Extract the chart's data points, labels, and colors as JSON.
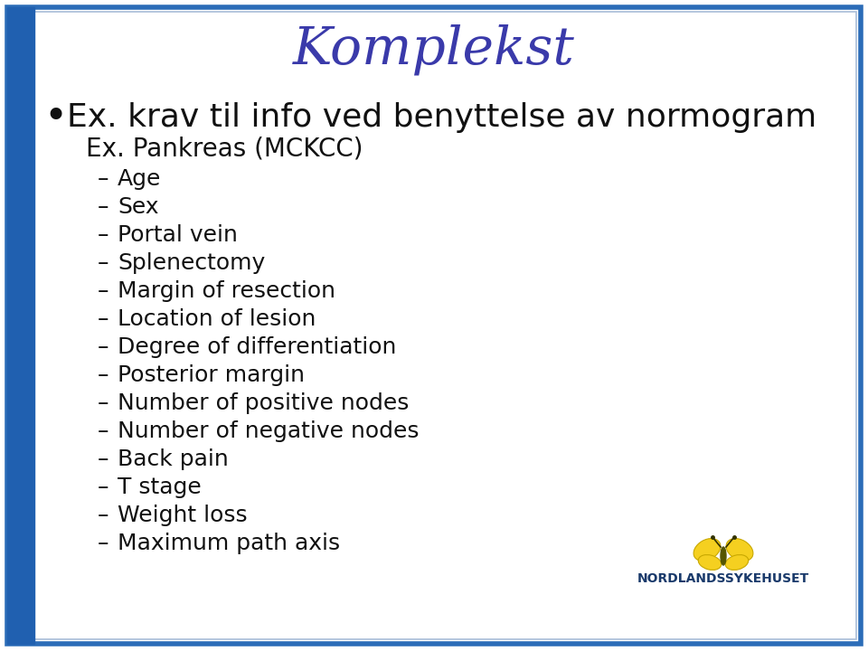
{
  "title": "Komplekst",
  "title_color": "#3a3aaa",
  "title_fontsize": 42,
  "background_color": "#ffffff",
  "border_color_outer": "#2b6cb8",
  "border_color_inner": "#a8bcd8",
  "bullet_text": "Ex. krav til info ved benyttelse av normogram",
  "sub_header": "Ex. Pankreas (MCKCC)",
  "dash_items": [
    "Age",
    "Sex",
    "Portal vein",
    "Splenectomy",
    "Margin of resection",
    "Location of lesion",
    "Degree of differentiation",
    "Posterior margin",
    "Number of positive nodes",
    "Number of negative nodes",
    "Back pain",
    "T stage",
    "Weight loss",
    "Maximum path axis"
  ],
  "text_color": "#111111",
  "sub_header_color": "#111111",
  "logo_text": "NORDLANDSSYKEHUSET",
  "logo_text_color": "#1a3a6b",
  "left_bar_color": "#2060b0",
  "dash_fontsize": 18,
  "bullet_fontsize": 26,
  "sub_header_fontsize": 20,
  "logo_fontsize": 10,
  "title_italic": true
}
